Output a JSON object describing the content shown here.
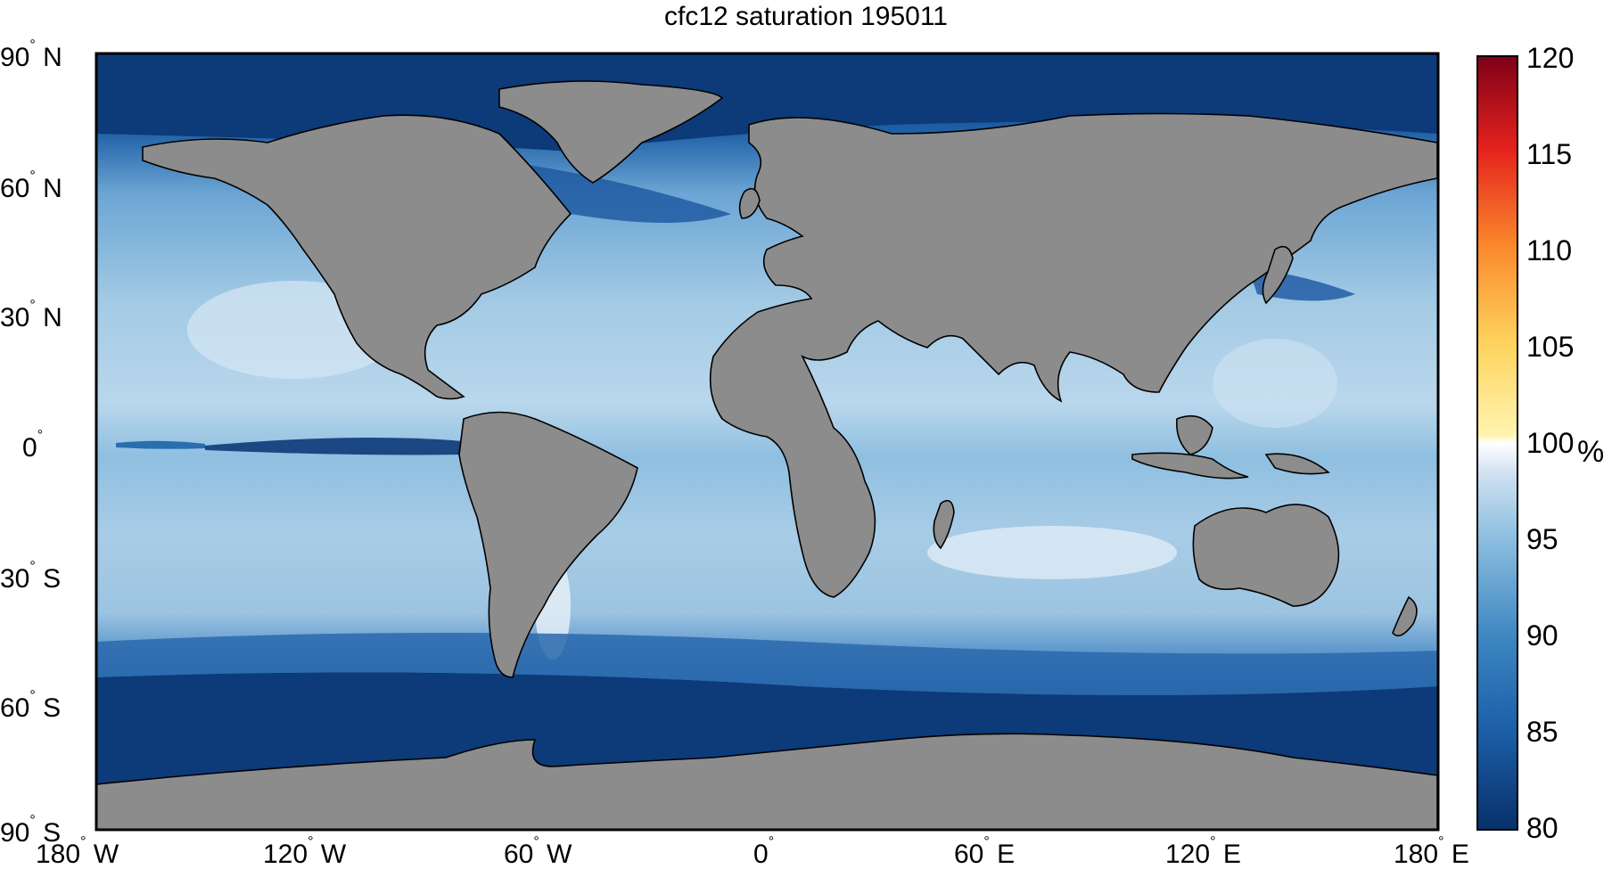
{
  "title": "cfc12 saturation 195011",
  "lat_labels": [
    {
      "deg": "90",
      "hemi": "N"
    },
    {
      "deg": "60",
      "hemi": "N"
    },
    {
      "deg": "30",
      "hemi": "N"
    },
    {
      "deg": "0",
      "hemi": ""
    },
    {
      "deg": "30",
      "hemi": "S"
    },
    {
      "deg": "60",
      "hemi": "S"
    },
    {
      "deg": "90",
      "hemi": "S"
    }
  ],
  "lon_labels": [
    {
      "deg": "180",
      "hemi": "W"
    },
    {
      "deg": "120",
      "hemi": "W"
    },
    {
      "deg": "60",
      "hemi": "W"
    },
    {
      "deg": "0",
      "hemi": ""
    },
    {
      "deg": "60",
      "hemi": "E"
    },
    {
      "deg": "120",
      "hemi": "E"
    },
    {
      "deg": "180",
      "hemi": "E"
    }
  ],
  "colorbar": {
    "ticks": [
      "120",
      "115",
      "110",
      "105",
      "100",
      "95",
      "90",
      "85",
      "80"
    ],
    "unit": "%",
    "range": [
      80,
      120
    ]
  },
  "colors": {
    "land": "#8c8c8c",
    "deep_blue": "#0b3670",
    "mid_blue": "#3f83c0",
    "light_blue": "#9cc7e2",
    "pale_blue": "#dde9f4"
  }
}
